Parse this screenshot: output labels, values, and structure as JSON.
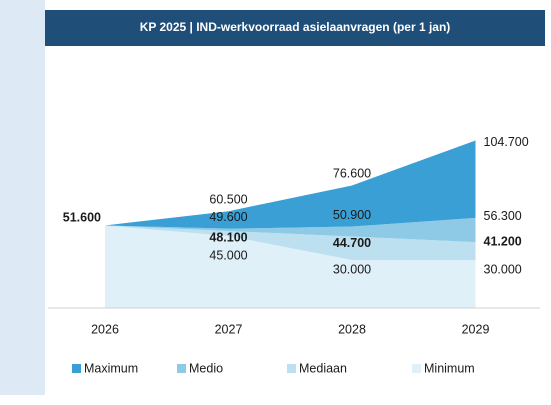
{
  "chart_data": {
    "type": "fan",
    "title": "KP 2025 | IND-werkvoorraad asielaanvragen (per 1 jan)",
    "categories": [
      "2026",
      "2027",
      "2028",
      "2029"
    ],
    "ylim": [
      0,
      120000
    ],
    "legend": "bottom",
    "series": [
      {
        "name": "Maximum",
        "color": "#3a9fd4",
        "values": [
          51600,
          60500,
          76600,
          104700
        ],
        "value_labels": [
          null,
          "60.500",
          "76.600",
          "104.700"
        ]
      },
      {
        "name": "Medio",
        "color": "#8ecae6",
        "values": [
          51600,
          49600,
          50900,
          56300
        ],
        "value_labels": [
          null,
          "49.600",
          "50.900",
          "56.300"
        ]
      },
      {
        "name": "Mediaan",
        "color": "#bde0f1",
        "values": [
          51600,
          48100,
          44700,
          41200
        ],
        "value_labels": [
          "51.600",
          "48.100",
          "44.700",
          "41.200"
        ]
      },
      {
        "name": "Minimum",
        "color": "#dff0f9",
        "values": [
          51600,
          45000,
          30000,
          30000
        ],
        "value_labels": [
          null,
          "45.000",
          "30.000",
          "30.000"
        ]
      }
    ]
  }
}
